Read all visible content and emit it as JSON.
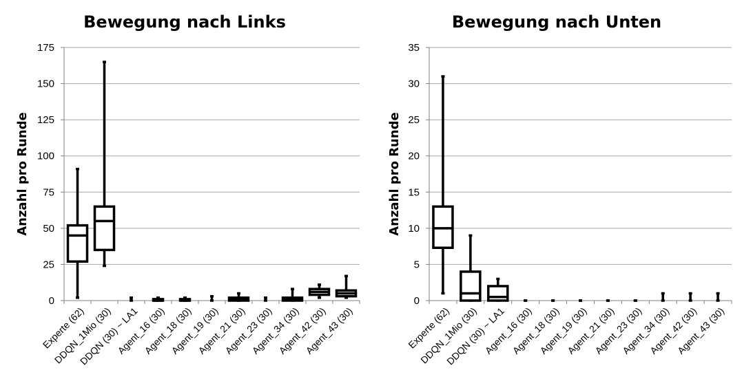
{
  "chart_data": [
    {
      "type": "boxplot",
      "title": "Bewegung nach Links",
      "xlabel": "",
      "ylabel": "Anzahl pro Runde",
      "ylim": [
        0,
        175
      ],
      "yticks": [
        "0",
        "25",
        "50",
        "75",
        "100",
        "125",
        "150",
        "175"
      ],
      "grid": true,
      "categories": [
        "Experte (62)",
        "DDQN_1Mio (30)",
        "DDQN (30) ~ LA1",
        "Agent_16 (30)",
        "Agent_18 (30)",
        "Agent_19 (30)",
        "Agent_21 (30)",
        "Agent_23 (30)",
        "Agent_34 (30)",
        "Agent_42 (30)",
        "Agent_43 (30)"
      ],
      "boxes": [
        {
          "min": 2,
          "q1": 27,
          "median": 45,
          "q3": 52,
          "max": 91
        },
        {
          "min": 24,
          "q1": 35,
          "median": 55,
          "q3": 65,
          "max": 165
        },
        {
          "min": 0,
          "q1": 0,
          "median": 0,
          "q3": 0,
          "max": 2
        },
        {
          "min": 0,
          "q1": 0,
          "median": 0,
          "q3": 1,
          "max": 2
        },
        {
          "min": 0,
          "q1": 0,
          "median": 0,
          "q3": 1,
          "max": 2
        },
        {
          "min": 0,
          "q1": 0,
          "median": 0,
          "q3": 0,
          "max": 3
        },
        {
          "min": 0,
          "q1": 0,
          "median": 1,
          "q3": 2,
          "max": 5
        },
        {
          "min": 0,
          "q1": 0,
          "median": 0,
          "q3": 0,
          "max": 2
        },
        {
          "min": 0,
          "q1": 0,
          "median": 1,
          "q3": 2,
          "max": 8
        },
        {
          "min": 2,
          "q1": 4,
          "median": 6,
          "q3": 8,
          "max": 11
        },
        {
          "min": 2,
          "q1": 3,
          "median": 5,
          "q3": 7,
          "max": 17
        }
      ]
    },
    {
      "type": "boxplot",
      "title": "Bewegung nach Unten",
      "xlabel": "",
      "ylabel": "Anzahl pro Runde",
      "ylim": [
        0,
        35
      ],
      "yticks": [
        "0",
        "5",
        "10",
        "15",
        "20",
        "25",
        "30",
        "35"
      ],
      "grid": true,
      "categories": [
        "Experte (62)",
        "DDQN_1Mio (30)",
        "DDQN (30) ~ LA1",
        "Agent_16 (30)",
        "Agent_18 (30)",
        "Agent_19 (30)",
        "Agent_21 (30)",
        "Agent_23 (30)",
        "Agent_34 (30)",
        "Agent_42 (30)",
        "Agent_43 (30)"
      ],
      "boxes": [
        {
          "min": 1,
          "q1": 7.3,
          "median": 10,
          "q3": 13,
          "max": 31
        },
        {
          "min": 0,
          "q1": 0,
          "median": 1,
          "q3": 4,
          "max": 9
        },
        {
          "min": 0,
          "q1": 0,
          "median": 0.5,
          "q3": 2,
          "max": 3
        },
        {
          "min": 0,
          "q1": 0,
          "median": 0,
          "q3": 0,
          "max": 0
        },
        {
          "min": 0,
          "q1": 0,
          "median": 0,
          "q3": 0,
          "max": 0
        },
        {
          "min": 0,
          "q1": 0,
          "median": 0,
          "q3": 0,
          "max": 0
        },
        {
          "min": 0,
          "q1": 0,
          "median": 0,
          "q3": 0,
          "max": 0
        },
        {
          "min": 0,
          "q1": 0,
          "median": 0,
          "q3": 0,
          "max": 0
        },
        {
          "min": 0,
          "q1": 0,
          "median": 0,
          "q3": 0,
          "max": 1
        },
        {
          "min": 0,
          "q1": 0,
          "median": 0,
          "q3": 0,
          "max": 1
        },
        {
          "min": 0,
          "q1": 0,
          "median": 0,
          "q3": 0,
          "max": 1
        }
      ]
    }
  ]
}
